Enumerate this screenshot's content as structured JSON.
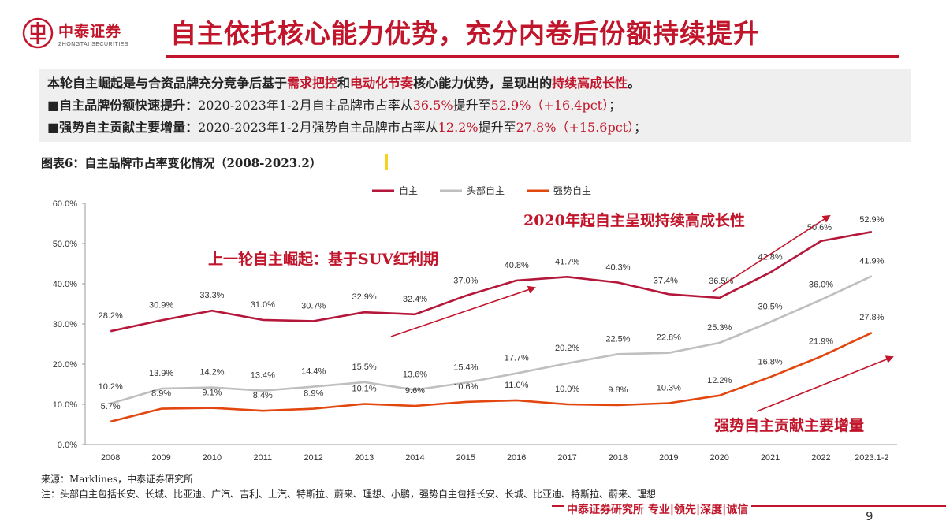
{
  "header": {
    "logo_cn": "中泰证券",
    "logo_en": "ZHONGTAI SECURITIES",
    "title": "自主依托核心能力优势，充分内卷后份额持续提升"
  },
  "summary": {
    "line1": {
      "a": "本轮自主崛起是与合资品牌充分竞争后基于",
      "hl1": "需求把控",
      "b": "和",
      "hl2": "电动化节奏",
      "c": "核心能力优势，呈现出的",
      "hl3": "持续高成长性",
      "d": "。"
    },
    "line2": {
      "lead": "■自主品牌份额快速提升：",
      "a": "2020-2023年1-2月自主品牌市占率从",
      "hl1": "36.5%",
      "b": "提升至",
      "hl2": "52.9%（+16.4pct）",
      "c": "；"
    },
    "line3": {
      "lead": "■强势自主贡献主要增量：",
      "a": "2020-2023年1-2月强势自主品牌市占率从",
      "hl1": "12.2%",
      "b": "提升至",
      "hl2": "27.8%（+15.6pct）",
      "c": "；"
    }
  },
  "figure": {
    "caption": "图表6：自主品牌市占率变化情况（2008-2023.2）"
  },
  "chart_data": {
    "type": "line",
    "categories": [
      "2008",
      "2009",
      "2010",
      "2011",
      "2012",
      "2013",
      "2014",
      "2015",
      "2016",
      "2017",
      "2018",
      "2019",
      "2020",
      "2021",
      "2022",
      "2023.1-2"
    ],
    "y_tick_labels": [
      "0.0%",
      "10.0%",
      "20.0%",
      "30.0%",
      "40.0%",
      "50.0%",
      "60.0%"
    ],
    "ylim": [
      0,
      60
    ],
    "legend_position": "top-center",
    "grid": false,
    "series": [
      {
        "name": "自主",
        "color": "#b5173b",
        "values": [
          28.2,
          30.9,
          33.3,
          31.0,
          30.7,
          32.9,
          32.4,
          37.0,
          40.8,
          41.7,
          40.3,
          37.4,
          36.5,
          42.8,
          50.6,
          52.9
        ],
        "labels": [
          "28.2%",
          "30.9%",
          "33.3%",
          "31.0%",
          "30.7%",
          "32.9%",
          "32.4%",
          "37.0%",
          "40.8%",
          "41.7%",
          "40.3%",
          "37.4%",
          "36.5%",
          "42.8%",
          "50.6%",
          "52.9%"
        ]
      },
      {
        "name": "头部自主",
        "color": "#bfbfbf",
        "values": [
          10.2,
          13.9,
          14.2,
          13.4,
          14.4,
          15.5,
          13.6,
          15.4,
          17.7,
          20.2,
          22.5,
          22.8,
          25.3,
          30.5,
          36.0,
          41.9
        ],
        "labels": [
          "10.2%",
          "13.9%",
          "14.2%",
          "13.4%",
          "14.4%",
          "15.5%",
          "13.6%",
          "15.4%",
          "17.7%",
          "20.2%",
          "22.5%",
          "22.8%",
          "25.3%",
          "30.5%",
          "36.0%",
          "41.9%"
        ]
      },
      {
        "name": "强势自主",
        "color": "#e2470f",
        "values": [
          5.7,
          8.9,
          9.1,
          8.4,
          8.9,
          10.1,
          9.6,
          10.6,
          11.0,
          10.0,
          9.8,
          10.3,
          12.2,
          16.8,
          21.9,
          27.8
        ],
        "labels": [
          "5.7%",
          "8.9%",
          "9.1%",
          "8.4%",
          "8.9%",
          "10.1%",
          "9.6%",
          "10.6%",
          "11.0%",
          "10.0%",
          "9.8%",
          "10.3%",
          "12.2%",
          "16.8%",
          "21.9%",
          "27.8%"
        ]
      }
    ],
    "annotations": {
      "a1": "上一轮自主崛起：基于SUV红利期",
      "a2": "2020年起自主呈现持续高成长性",
      "a3": "强势自主贡献主要增量"
    },
    "annotation_color": "#c0152a"
  },
  "footer": {
    "source": "来源：Marklines，中泰证券研究所",
    "note": "注：头部自主包括长安、长城、比亚迪、广汽、吉利、上汽、特斯拉、蔚来、理想、小鹏，强势自主包括长安、长城、比亚迪、特斯拉、蔚来、理想",
    "brand": "中泰证券研究所 专业|领先|深度|诚信",
    "page": "9"
  }
}
